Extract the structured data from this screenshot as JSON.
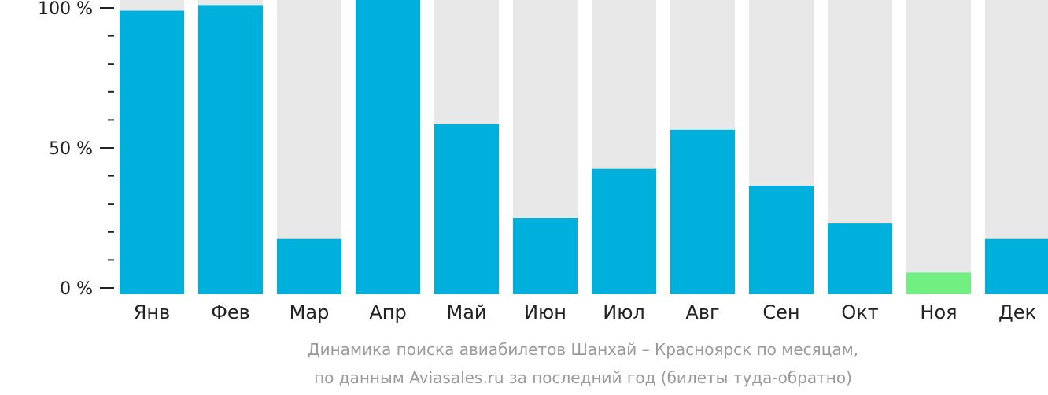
{
  "chart_data": {
    "type": "bar",
    "categories": [
      "Янв",
      "Фев",
      "Мар",
      "Апр",
      "Май",
      "Июн",
      "Июл",
      "Авг",
      "Сен",
      "Окт",
      "Ноя",
      "Дек"
    ],
    "values": [
      99,
      101,
      17.5,
      104,
      58.5,
      25,
      42.5,
      56.5,
      36.5,
      23,
      5.5,
      17.5
    ],
    "ylim": [
      0,
      100
    ],
    "yticks": [
      {
        "value": 0,
        "label": "0 %"
      },
      {
        "value": 50,
        "label": "50 %"
      },
      {
        "value": 100,
        "label": "100 %"
      }
    ],
    "minor_tick_step": 10,
    "caption": [
      "Динамика поиска авиабилетов Шанхай – Красноярск по месяцам,",
      "по данным Aviasales.ru за последний год (билеты туда-обратно)"
    ],
    "colors": {
      "bar": "#00b0dc",
      "bar_highlight": "#71f081",
      "background": "#e8e8e8",
      "axis": "#222222",
      "caption": "#9a9a9a"
    },
    "highlight_index": 10
  }
}
